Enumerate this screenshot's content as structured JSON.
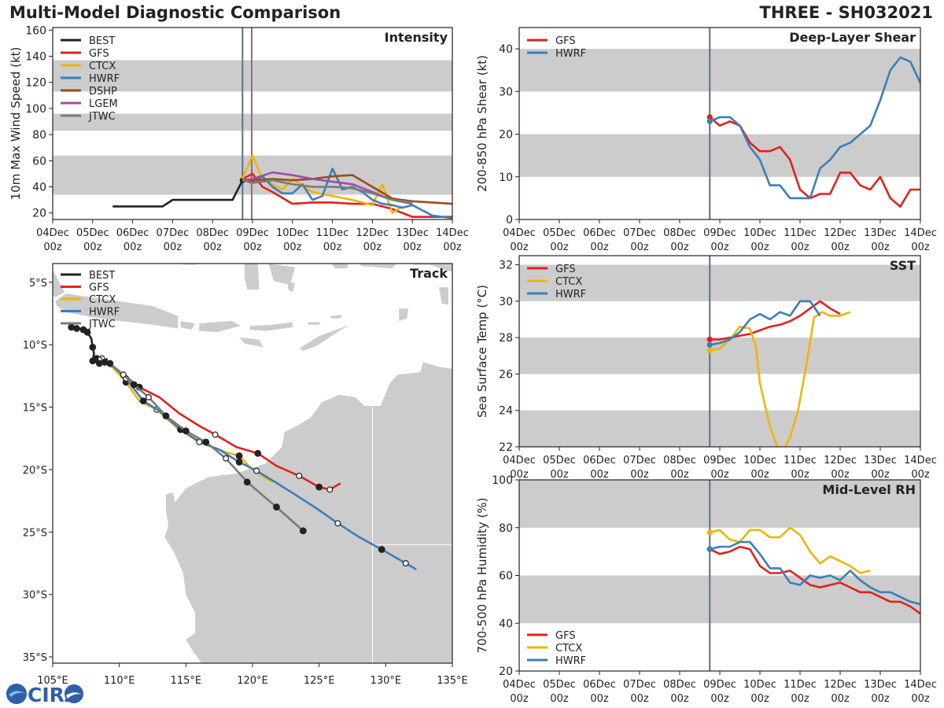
{
  "header": {
    "title": "Multi-Model Diagnostic Comparison",
    "storm": "THREE - SH032021"
  },
  "logo": {
    "text": "CIRA",
    "colors": {
      "blue": "#2f5fa7",
      "cyan": "#6ec6e8"
    }
  },
  "colors": {
    "BEST": "#222222",
    "GFS": "#e2211c",
    "CTCX": "#edb50b",
    "HWRF": "#3a7fba",
    "DSHP": "#9c4a1e",
    "LGEM": "#9b4fa5",
    "JTWC": "#7b7b7b",
    "band": "#cccccc",
    "land": "#cccccc",
    "marker": "#5b6f8e",
    "marker2": "#8a6f82"
  },
  "time_ticks": [
    {
      "top": "04Dec",
      "bottom": "00z"
    },
    {
      "top": "05Dec",
      "bottom": "00z"
    },
    {
      "top": "06Dec",
      "bottom": "00z"
    },
    {
      "top": "07Dec",
      "bottom": "00z"
    },
    {
      "top": "08Dec",
      "bottom": "00z"
    },
    {
      "top": "09Dec",
      "bottom": "00z"
    },
    {
      "top": "10Dec",
      "bottom": "00z"
    },
    {
      "top": "11Dec",
      "bottom": "00z"
    },
    {
      "top": "12Dec",
      "bottom": "00z"
    },
    {
      "top": "13Dec",
      "bottom": "00z"
    },
    {
      "top": "14Dec",
      "bottom": "00z"
    }
  ],
  "chart_data": [
    {
      "id": "intensity",
      "type": "line",
      "title": "Intensity",
      "xlabel": "",
      "ylabel": "10m Max Wind Speed (kt)",
      "xlim": [
        0,
        10
      ],
      "ylim": [
        15,
        162
      ],
      "yticks": [
        20,
        40,
        60,
        80,
        100,
        120,
        140,
        160
      ],
      "bands": [
        [
          34,
          64
        ],
        [
          83,
          96
        ],
        [
          113,
          137
        ]
      ],
      "vlines": [
        4.75,
        4.98
      ],
      "legend": [
        "BEST",
        "GFS",
        "CTCX",
        "HWRF",
        "DSHP",
        "LGEM",
        "JTWC"
      ],
      "series": [
        {
          "name": "BEST",
          "x": [
            1.5,
            2.75,
            3,
            4.5,
            4.75
          ],
          "y": [
            25,
            25,
            30,
            30,
            45
          ],
          "dot_end": true
        },
        {
          "name": "GFS",
          "x": [
            4.75,
            5,
            5.25,
            5.5,
            6,
            6.5,
            7,
            7.5,
            8,
            8.5,
            9,
            9.5,
            10
          ],
          "y": [
            46,
            50,
            40,
            36,
            27,
            28,
            28,
            27,
            27,
            23,
            17,
            17,
            17
          ]
        },
        {
          "name": "CTCX",
          "x": [
            4.75,
            5,
            5.25,
            5.5,
            5.75,
            6,
            6.5,
            7,
            7.5,
            8,
            8.25,
            8.5,
            8.75
          ],
          "y": [
            46,
            64,
            46,
            42,
            38,
            46,
            36,
            33,
            30,
            26,
            42,
            20,
            25
          ]
        },
        {
          "name": "HWRF",
          "x": [
            4.75,
            5,
            5.25,
            5.5,
            5.75,
            6,
            6.25,
            6.5,
            6.75,
            7,
            7.25,
            7.5,
            7.75,
            8,
            8.25,
            8.5,
            8.75,
            9,
            9.25,
            9.5,
            10
          ],
          "y": [
            45,
            44,
            48,
            40,
            35,
            35,
            42,
            30,
            33,
            54,
            38,
            40,
            36,
            30,
            27,
            26,
            24,
            26,
            22,
            18,
            16
          ]
        },
        {
          "name": "DSHP",
          "x": [
            4.75,
            5,
            5.5,
            6,
            6.5,
            7,
            7.5,
            8,
            8.5,
            9,
            9.5,
            10
          ],
          "y": [
            45,
            45,
            46,
            45,
            46,
            48,
            49,
            40,
            31,
            29,
            28,
            27
          ]
        },
        {
          "name": "LGEM",
          "x": [
            4.75,
            5,
            5.5,
            6,
            6.5,
            7,
            7.5,
            8,
            8.5,
            9
          ],
          "y": [
            45,
            46,
            51,
            49,
            46,
            44,
            42,
            36,
            30,
            27
          ]
        },
        {
          "name": "JTWC",
          "x": [
            4.75,
            5,
            5.5,
            6,
            6.5,
            7,
            7.5,
            8,
            8.5,
            9
          ],
          "y": [
            45,
            43,
            45,
            42,
            40,
            40,
            39,
            35,
            30,
            28
          ]
        }
      ]
    },
    {
      "id": "shear",
      "type": "line",
      "title": "Deep-Layer Shear",
      "xlabel": "",
      "ylabel": "200-850 hPa Shear (kt)",
      "xlim": [
        0,
        10
      ],
      "ylim": [
        0,
        45
      ],
      "yticks": [
        0,
        10,
        20,
        30,
        40
      ],
      "bands": [
        [
          10,
          20
        ],
        [
          30,
          40
        ]
      ],
      "vlines": [
        4.75
      ],
      "legend": [
        "GFS",
        "HWRF"
      ],
      "series": [
        {
          "name": "GFS",
          "x": [
            4.75,
            5,
            5.25,
            5.5,
            5.75,
            6,
            6.25,
            6.5,
            6.75,
            7,
            7.25,
            7.5,
            7.75,
            8,
            8.25,
            8.5,
            8.75,
            9,
            9.25,
            9.5,
            9.75,
            10
          ],
          "y": [
            24,
            22,
            23,
            22,
            18,
            16,
            16,
            17,
            14,
            7,
            5,
            6,
            6,
            11,
            11,
            8,
            7,
            10,
            5,
            3,
            7,
            7
          ],
          "dot_start": true
        },
        {
          "name": "HWRF",
          "x": [
            4.75,
            5,
            5.25,
            5.5,
            5.75,
            6,
            6.25,
            6.5,
            6.75,
            7,
            7.25,
            7.5,
            7.75,
            8,
            8.25,
            8.5,
            8.75,
            9,
            9.25,
            9.5,
            9.75,
            10
          ],
          "y": [
            23,
            24,
            24,
            22,
            17,
            14,
            8,
            8,
            5,
            5,
            5,
            12,
            14,
            17,
            18,
            20,
            22,
            28,
            35,
            38,
            37,
            32
          ],
          "dot_start": true
        }
      ]
    },
    {
      "id": "sst",
      "type": "line",
      "title": "SST",
      "xlabel": "",
      "ylabel": "Sea Surface Temp (°C)",
      "xlim": [
        0,
        10
      ],
      "ylim": [
        22,
        32.5
      ],
      "yticks": [
        22,
        24,
        26,
        28,
        30,
        32
      ],
      "bands": [
        [
          22,
          24
        ],
        [
          26,
          28
        ],
        [
          30,
          32
        ]
      ],
      "vlines": [
        4.75
      ],
      "legend": [
        "GFS",
        "CTCX",
        "HWRF"
      ],
      "series": [
        {
          "name": "GFS",
          "x": [
            4.75,
            5,
            5.25,
            5.5,
            5.75,
            6,
            6.25,
            6.5,
            6.75,
            7,
            7.25,
            7.5,
            7.75,
            8
          ],
          "y": [
            27.9,
            27.9,
            28.0,
            28.1,
            28.2,
            28.4,
            28.6,
            28.7,
            28.9,
            29.2,
            29.6,
            30.0,
            29.6,
            29.3
          ],
          "dot_start": true
        },
        {
          "name": "CTCX",
          "x": [
            4.75,
            5,
            5.25,
            5.5,
            5.75,
            5.9,
            6,
            6.25,
            6.45,
            6.6,
            6.75,
            6.95,
            7.15,
            7.35,
            7.55,
            7.75,
            8,
            8.25
          ],
          "y": [
            27.3,
            27.4,
            27.9,
            28.6,
            28.5,
            27.5,
            25.5,
            23.1,
            21.9,
            21.9,
            22.5,
            24.0,
            26.4,
            29.1,
            29.4,
            29.2,
            29.2,
            29.4
          ],
          "dot_start": true
        },
        {
          "name": "HWRF",
          "x": [
            4.75,
            5,
            5.25,
            5.5,
            5.75,
            6,
            6.25,
            6.5,
            6.75,
            7,
            7.25,
            7.5
          ],
          "y": [
            27.6,
            27.7,
            27.9,
            28.3,
            29.0,
            29.3,
            29.0,
            29.4,
            29.2,
            30.0,
            30.0,
            29.2
          ],
          "dot_start": true
        }
      ]
    },
    {
      "id": "rh",
      "type": "line",
      "title": "Mid-Level RH",
      "xlabel": "",
      "ylabel": "700-500 hPa Humidity (%)",
      "xlim": [
        0,
        10
      ],
      "ylim": [
        20,
        100
      ],
      "yticks": [
        20,
        40,
        60,
        80,
        100
      ],
      "bands": [
        [
          40,
          60
        ],
        [
          80,
          100
        ]
      ],
      "vlines": [
        4.75
      ],
      "legend": [
        "GFS",
        "CTCX",
        "HWRF"
      ],
      "legend_loc": "lower-left",
      "series": [
        {
          "name": "GFS",
          "x": [
            4.75,
            5,
            5.25,
            5.5,
            5.75,
            6,
            6.25,
            6.5,
            6.75,
            7,
            7.25,
            7.5,
            7.75,
            8,
            8.25,
            8.5,
            8.75,
            9,
            9.25,
            9.5,
            9.75,
            10
          ],
          "y": [
            71,
            69,
            70,
            72,
            71,
            64,
            61,
            61,
            62,
            59,
            56,
            55,
            56,
            57,
            55,
            53,
            53,
            51,
            49,
            49,
            47,
            44
          ],
          "dot_start": true
        },
        {
          "name": "CTCX",
          "x": [
            4.75,
            5,
            5.25,
            5.5,
            5.75,
            6,
            6.25,
            6.5,
            6.75,
            7,
            7.25,
            7.5,
            7.75,
            8,
            8.25,
            8.5,
            8.75
          ],
          "y": [
            78,
            79,
            75,
            74,
            79,
            79,
            76,
            76,
            80,
            77,
            70,
            65,
            68,
            66,
            64,
            61,
            62
          ],
          "dot_start": true
        },
        {
          "name": "HWRF",
          "x": [
            4.75,
            5,
            5.25,
            5.5,
            5.75,
            6,
            6.25,
            6.5,
            6.75,
            7,
            7.25,
            7.5,
            7.75,
            8,
            8.25,
            8.5,
            8.75,
            9,
            9.25,
            9.5,
            9.75,
            10
          ],
          "y": [
            71,
            72,
            72,
            74,
            74,
            69,
            63,
            63,
            57,
            56,
            60,
            59,
            60,
            58,
            62,
            58,
            55,
            53,
            53,
            51,
            49,
            48
          ],
          "dot_start": true
        }
      ]
    },
    {
      "id": "track",
      "type": "line",
      "title": "Track",
      "xlabel": "",
      "ylabel": "",
      "xlim": [
        105,
        135
      ],
      "ylim": [
        -35.5,
        -3.5
      ],
      "xtick_values": [
        105,
        110,
        115,
        120,
        125,
        130,
        135
      ],
      "xtick_labels": [
        "105°E",
        "110°E",
        "115°E",
        "120°E",
        "125°E",
        "130°E",
        "135°E"
      ],
      "ytick_values": [
        -5,
        -10,
        -15,
        -20,
        -25,
        -30,
        -35
      ],
      "ytick_labels": [
        "5°S",
        "10°S",
        "15°S",
        "20°S",
        "25°S",
        "30°S",
        "35°S"
      ],
      "legend": [
        "BEST",
        "GFS",
        "CTCX",
        "HWRF",
        "JTWC"
      ],
      "series": [
        {
          "name": "BEST",
          "lon": [
            106.4,
            106.8,
            107.3,
            107.6,
            107.9,
            108.0,
            108.1,
            108.0,
            108.2,
            108.5,
            108.9,
            109.1
          ],
          "lat": [
            -8.6,
            -8.7,
            -8.8,
            -9.0,
            -9.5,
            -10.2,
            -10.7,
            -11.3,
            -11.2,
            -11.5,
            -11.4,
            -11.1
          ],
          "marks": [
            1,
            1,
            1,
            1,
            0,
            1,
            0,
            1,
            1,
            1,
            1,
            0
          ],
          "open": [
            0,
            0,
            0,
            0,
            1,
            0,
            1,
            0,
            0,
            0,
            0,
            1
          ]
        },
        {
          "name": "GFS",
          "lon": [
            108.3,
            109.8,
            111.5,
            113.0,
            114.5,
            116.0,
            117.2,
            118.8,
            120.4,
            121.8,
            123.5,
            125.0,
            125.8,
            126.6
          ],
          "lat": [
            -11.1,
            -12.0,
            -13.4,
            -14.2,
            -15.5,
            -16.5,
            -17.2,
            -18.2,
            -18.7,
            -19.7,
            -20.5,
            -21.4,
            -21.6,
            -21.1
          ],
          "marks": [
            1,
            0,
            1,
            0,
            0,
            0,
            1,
            0,
            1,
            0,
            1,
            1,
            1,
            0
          ],
          "open": [
            0,
            0,
            0,
            0,
            0,
            0,
            1,
            0,
            0,
            0,
            1,
            0,
            1,
            0
          ]
        },
        {
          "name": "CTCX",
          "lon": [
            108.3,
            109.5,
            110.5,
            111.5,
            112.8,
            114.5,
            116.5,
            118.0,
            119.0,
            119.8,
            121.0,
            121.5
          ],
          "lat": [
            -11.1,
            -11.8,
            -13.0,
            -14.5,
            -15.2,
            -16.8,
            -18.0,
            -18.6,
            -18.9,
            -19.8,
            -20.7,
            -21.0
          ],
          "marks": [
            0,
            0,
            1,
            0,
            1,
            0,
            0,
            0,
            1,
            0,
            0,
            0
          ],
          "open": [
            0,
            0,
            0,
            0,
            1,
            0,
            0,
            0,
            0,
            0,
            0,
            0
          ]
        },
        {
          "name": "HWRF",
          "lon": [
            108.7,
            109.5,
            110.5,
            111.8,
            113.0,
            114.6,
            116.0,
            117.5,
            119.0,
            120.3,
            121.7,
            123.2,
            124.8,
            126.4,
            128.0,
            129.7,
            131.5,
            132.3
          ],
          "lat": [
            -11.1,
            -11.7,
            -12.7,
            -14.5,
            -15.3,
            -16.8,
            -17.8,
            -18.4,
            -19.4,
            -20.1,
            -21.0,
            -22.0,
            -23.1,
            -24.3,
            -25.4,
            -26.4,
            -27.5,
            -28.0
          ],
          "marks": [
            1,
            0,
            1,
            1,
            0,
            1,
            1,
            0,
            1,
            1,
            0,
            0,
            0,
            1,
            0,
            1,
            1,
            0
          ],
          "open": [
            1,
            0,
            1,
            0,
            0,
            0,
            1,
            0,
            0,
            1,
            0,
            0,
            0,
            1,
            0,
            0,
            1,
            0
          ]
        },
        {
          "name": "JTWC",
          "lon": [
            108.5,
            109.3,
            110.3,
            111.1,
            112.2,
            113.5,
            115.0,
            116.5,
            118.0,
            119.6,
            121.8,
            123.8
          ],
          "lat": [
            -11.2,
            -11.5,
            -12.4,
            -13.2,
            -14.2,
            -15.7,
            -16.9,
            -17.8,
            -19.1,
            -21.0,
            -23.0,
            -24.9
          ],
          "marks": [
            1,
            1,
            1,
            1,
            1,
            1,
            1,
            1,
            1,
            1,
            1,
            1
          ],
          "open": [
            1,
            0,
            1,
            0,
            1,
            0,
            0,
            0,
            1,
            0,
            0,
            0
          ]
        }
      ]
    }
  ]
}
